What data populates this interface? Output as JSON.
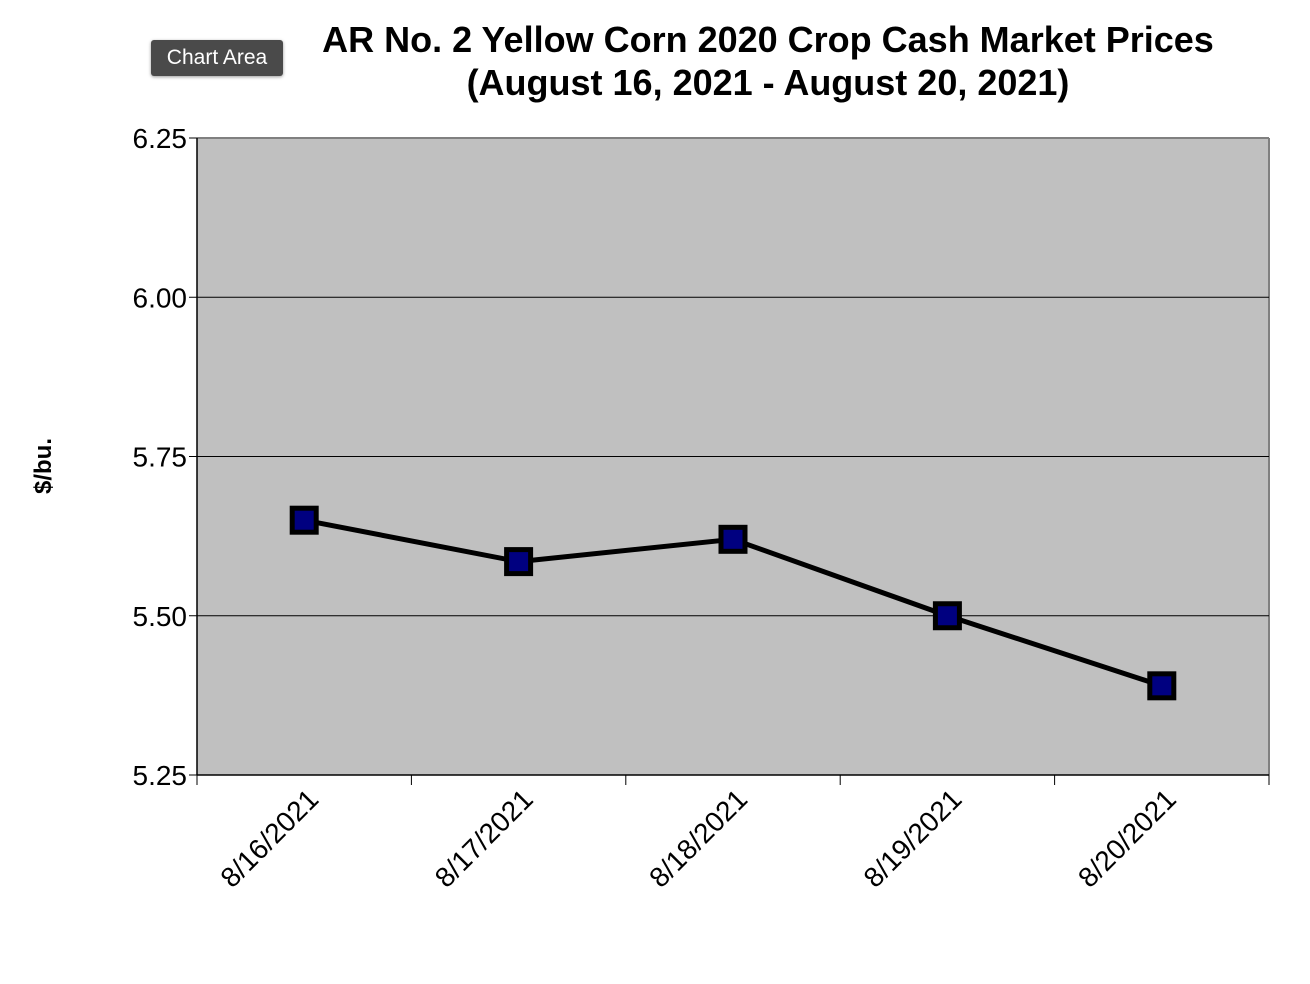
{
  "tooltip": {
    "label": "Chart Area"
  },
  "colors": {
    "plot_background": "#c0c0c0",
    "line": "#000000",
    "marker_fill": "#000080",
    "gridline": "#000000"
  },
  "chart_data": {
    "type": "line",
    "title_line1": "AR No. 2 Yellow Corn 2020 Crop Cash Market Prices",
    "title_line2": "(August 16, 2021 - August 20, 2021)",
    "xlabel": "",
    "ylabel": "$/bu.",
    "categories": [
      "8/16/2021",
      "8/17/2021",
      "8/18/2021",
      "8/19/2021",
      "8/20/2021"
    ],
    "series": [
      {
        "values": [
          5.65,
          5.585,
          5.62,
          5.5,
          5.39
        ]
      }
    ],
    "ylim": [
      5.25,
      6.25
    ],
    "yticks": [
      "5.25",
      "5.50",
      "5.75",
      "6.00",
      "6.25"
    ],
    "grid": true,
    "legend": "none",
    "marker": "square"
  }
}
